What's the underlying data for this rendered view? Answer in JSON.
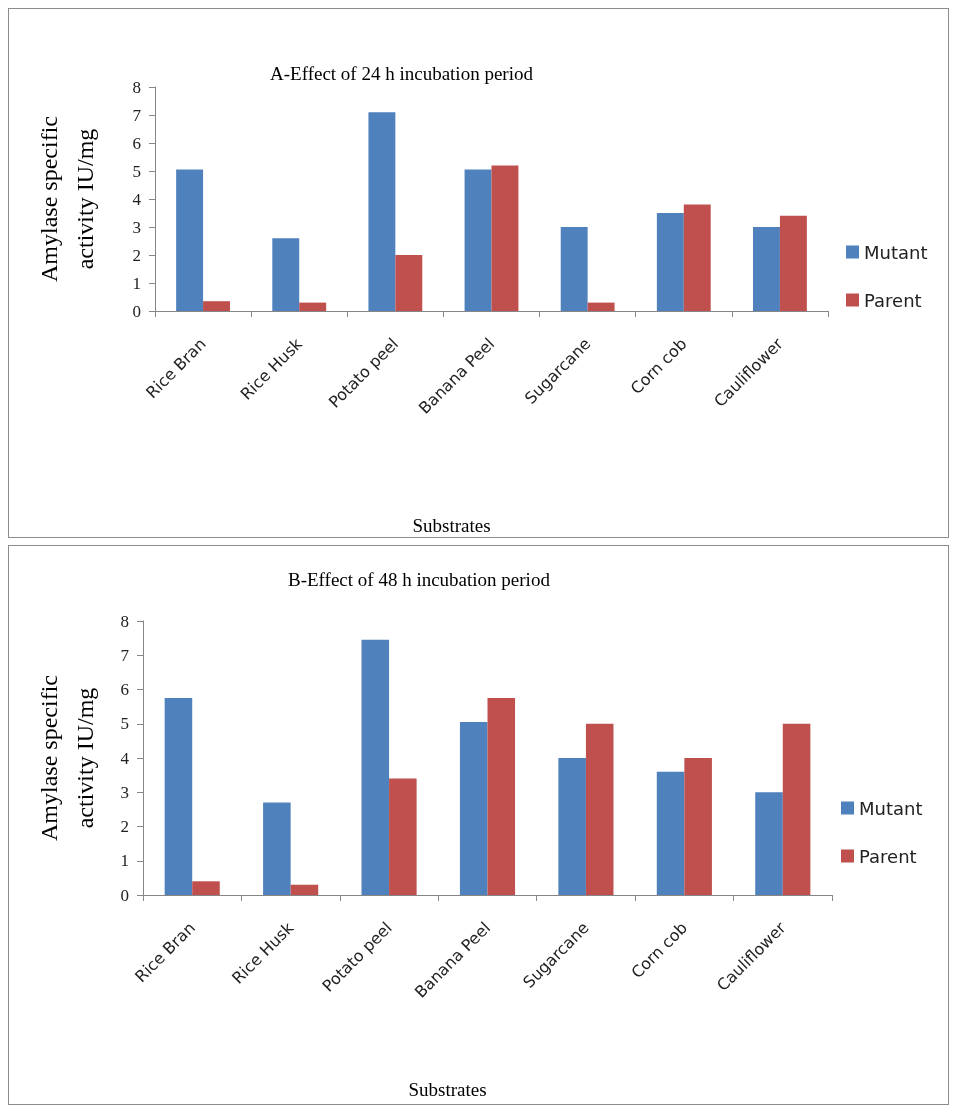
{
  "chart_data": [
    {
      "type": "bar",
      "title": "A-Effect of 24 h incubation period",
      "xlabel": "Substrates",
      "ylabel": "Amylase specific activity IU/mg",
      "categories": [
        "Rice Bran",
        "Rice Husk",
        "Potato peel",
        "Banana Peel",
        "Sugarcane",
        "Corn cob",
        "Cauliflower"
      ],
      "series": [
        {
          "name": "Mutant",
          "color": "#4f81bd",
          "values": [
            5.05,
            2.6,
            7.1,
            5.05,
            3.0,
            3.5,
            3.0
          ]
        },
        {
          "name": "Parent",
          "color": "#c0504d",
          "values": [
            0.35,
            0.3,
            2.0,
            5.2,
            0.3,
            3.8,
            3.4
          ]
        }
      ],
      "ylim": [
        0,
        8
      ],
      "yticks": [
        0,
        1,
        2,
        3,
        4,
        5,
        6,
        7,
        8
      ],
      "grid": false,
      "legend": "right"
    },
    {
      "type": "bar",
      "title": "B-Effect of 48 h incubation period",
      "xlabel": "Substrates",
      "ylabel": "Amylase specific activity IU/mg",
      "categories": [
        "Rice Bran",
        "Rice Husk",
        "Potato peel",
        "Banana Peel",
        "Sugarcane",
        "Corn cob",
        "Cauliflower"
      ],
      "series": [
        {
          "name": "Mutant",
          "color": "#4f81bd",
          "values": [
            5.75,
            2.7,
            7.45,
            5.05,
            4.0,
            3.6,
            3.0
          ]
        },
        {
          "name": "Parent",
          "color": "#c0504d",
          "values": [
            0.4,
            0.3,
            3.4,
            5.75,
            5.0,
            4.0,
            5.0
          ]
        }
      ],
      "ylim": [
        0,
        8
      ],
      "yticks": [
        0,
        1,
        2,
        3,
        4,
        5,
        6,
        7,
        8
      ],
      "grid": false,
      "legend": "right"
    }
  ]
}
